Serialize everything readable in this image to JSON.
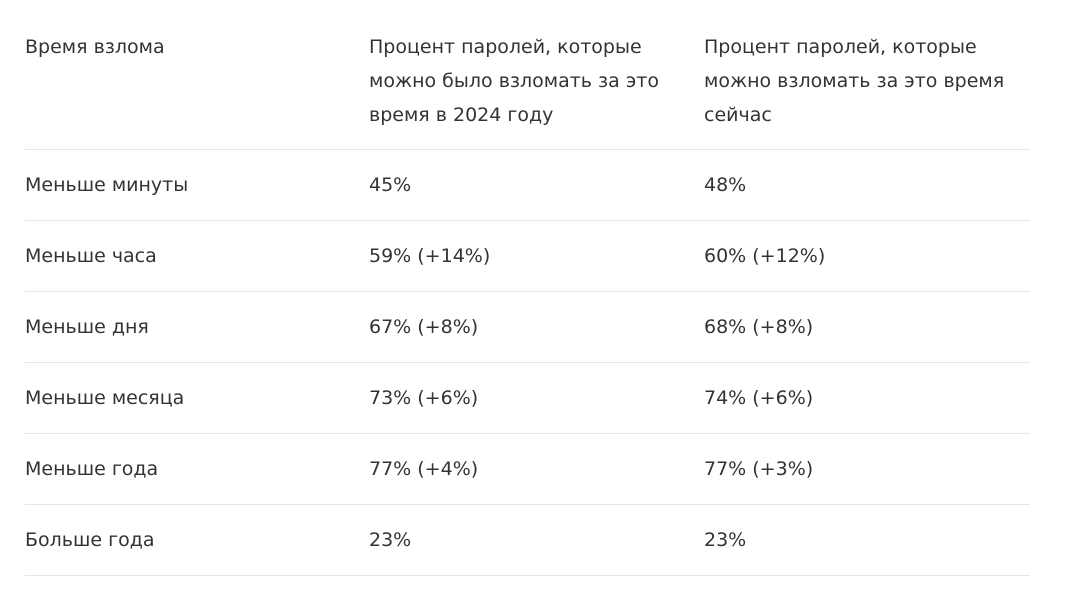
{
  "table": {
    "headers": [
      "Время взлома",
      "Процент паролей, которые можно было взломать за это время в 2024 году",
      "Процент паролей, которые можно взломать за это время сейчас"
    ],
    "rows": [
      [
        "Меньше минуты",
        "45%",
        "48%"
      ],
      [
        "Меньше часа",
        "59% (+14%)",
        "60% (+12%)"
      ],
      [
        "Меньше дня",
        "67% (+8%)",
        "68% (+8%)"
      ],
      [
        "Меньше месяца",
        "73% (+6%)",
        "74% (+6%)"
      ],
      [
        "Меньше года",
        "77% (+4%)",
        "77% (+3%)"
      ],
      [
        "Больше года",
        "23%",
        "23%"
      ]
    ]
  }
}
